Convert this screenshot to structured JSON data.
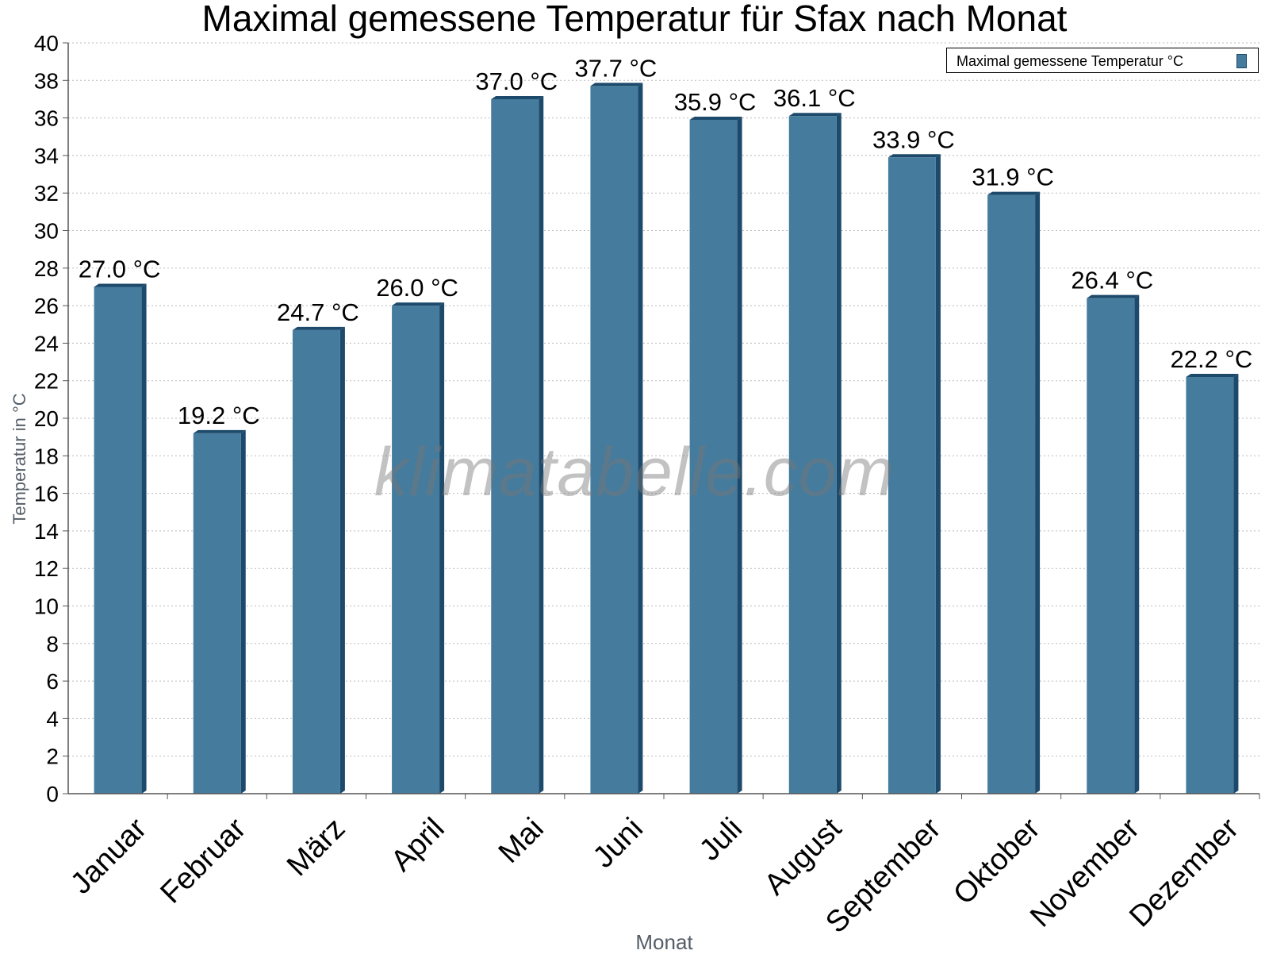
{
  "title": "Maximal gemessene Temperatur für Sfax nach Monat",
  "watermark": "klimatabelle.com",
  "legend": {
    "label": "Maximal gemessene Temperatur °C"
  },
  "colors": {
    "bar": "#457b9d",
    "bar_side": "#1d4a6b",
    "grid": "#bbbbbb"
  },
  "chart_data": {
    "type": "bar",
    "title": "Maximal gemessene Temperatur für Sfax nach Monat",
    "xlabel": "Monat",
    "ylabel": "Temperatur in °C",
    "ylim": [
      0,
      40
    ],
    "yticks": [
      0,
      2,
      4,
      6,
      8,
      10,
      12,
      14,
      16,
      18,
      20,
      22,
      24,
      26,
      28,
      30,
      32,
      34,
      36,
      38,
      40
    ],
    "grid": true,
    "legend_position": "top-right",
    "categories": [
      "Januar",
      "Februar",
      "März",
      "April",
      "Mai",
      "Juni",
      "Juli",
      "August",
      "September",
      "Oktober",
      "November",
      "Dezember"
    ],
    "series": [
      {
        "name": "Maximal gemessene Temperatur °C",
        "values": [
          27.0,
          19.2,
          24.7,
          26.0,
          37.0,
          37.7,
          35.9,
          36.1,
          33.9,
          31.9,
          26.4,
          22.2
        ],
        "labels": [
          "27.0 °C",
          "19.2 °C",
          "24.7 °C",
          "26.0 °C",
          "37.0 °C",
          "37.7 °C",
          "35.9 °C",
          "36.1 °C",
          "33.9 °C",
          "31.9 °C",
          "26.4 °C",
          "22.2 °C"
        ]
      }
    ]
  }
}
